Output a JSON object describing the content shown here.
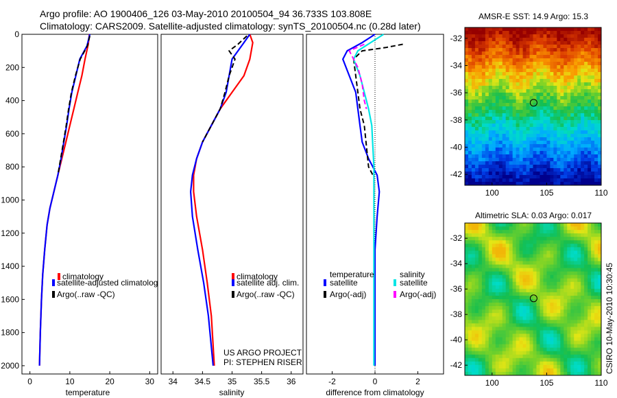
{
  "header": {
    "line1": "Argo profile: AO 1900406_126 03-May-2010 20100504_94 36.733S 103.808E",
    "line2": "Climatology: CARS2009. Satellite-adjusted climatology: synTS_20100504.nc (0.28d later)"
  },
  "colors": {
    "climatology": "#ff0000",
    "satellite": "#0000ff",
    "argo": "#000000",
    "satellite_salinity": "#00e5e5",
    "argo_salinity": "#ff00ff"
  },
  "chart_data": [
    {
      "id": "temperature",
      "type": "line",
      "xlabel": "temperature",
      "xlim": [
        -2,
        32
      ],
      "xticks": [
        0,
        10,
        20,
        30
      ],
      "ylim": [
        0,
        2050
      ],
      "yticks": [
        0,
        200,
        400,
        600,
        800,
        1000,
        1200,
        1400,
        1600,
        1800,
        2000
      ],
      "y_reversed": true,
      "legend": {
        "position": "lower-right",
        "entries": [
          "climatology",
          "satellite-adjusted climatolog",
          "Argo(..raw -QC)"
        ]
      },
      "series": [
        {
          "name": "climatology",
          "color_key": "climatology",
          "dash": "solid",
          "x": [
            14.9,
            14.6,
            13.8,
            13.0,
            12.0,
            11.0,
            10.0,
            9.0,
            8.0,
            7.0,
            6.0,
            5.0,
            4.3,
            3.7,
            3.2,
            2.9,
            2.6,
            2.5,
            2.4
          ],
          "y": [
            0,
            60,
            150,
            250,
            350,
            450,
            550,
            650,
            750,
            850,
            950,
            1050,
            1150,
            1300,
            1450,
            1600,
            1800,
            1900,
            2000
          ]
        },
        {
          "name": "satellite-adjusted climatolog",
          "color_key": "satellite",
          "dash": "solid",
          "x": [
            15.0,
            14.3,
            12.5,
            11.5,
            10.5,
            9.8,
            9.2,
            8.5,
            7.8,
            7.0,
            6.0,
            5.0,
            4.3,
            3.7,
            3.2,
            2.9,
            2.6,
            2.5,
            2.4
          ],
          "y": [
            0,
            70,
            150,
            250,
            350,
            450,
            550,
            650,
            750,
            850,
            950,
            1050,
            1150,
            1300,
            1450,
            1600,
            1800,
            1900,
            2000
          ]
        },
        {
          "name": "Argo(..raw -QC)",
          "color_key": "argo",
          "dash": "dashed",
          "x": [
            15.0,
            14.4,
            12.6,
            11.4,
            10.4,
            9.7,
            9.1,
            8.4,
            7.7,
            7.0
          ],
          "y": [
            10,
            70,
            150,
            250,
            350,
            450,
            550,
            650,
            750,
            850
          ]
        }
      ]
    },
    {
      "id": "salinity",
      "type": "line",
      "xlabel": "salinity",
      "xlim": [
        33.8,
        36.2
      ],
      "xticks": [
        34,
        34.5,
        35,
        35.5,
        36
      ],
      "ylim": [
        0,
        2050
      ],
      "y_reversed": true,
      "legend": {
        "position": "lower-right",
        "entries": [
          "climatology",
          "satellite adj. clim.",
          "Argo(..raw -QC)"
        ]
      },
      "annotation": [
        "US ARGO PROJECT",
        "PI: STEPHEN RISER"
      ],
      "series": [
        {
          "name": "climatology",
          "color_key": "climatology",
          "dash": "solid",
          "x": [
            35.3,
            35.35,
            35.3,
            35.2,
            35.0,
            34.8,
            34.65,
            34.5,
            34.4,
            34.35,
            34.35,
            34.4,
            34.5,
            34.58,
            34.65,
            34.7
          ],
          "y": [
            0,
            50,
            150,
            250,
            350,
            450,
            550,
            650,
            750,
            850,
            950,
            1100,
            1300,
            1500,
            1700,
            2000
          ]
        },
        {
          "name": "satellite adj. clim.",
          "color_key": "satellite",
          "dash": "solid",
          "x": [
            35.3,
            35.2,
            35.0,
            34.95,
            34.9,
            34.8,
            34.65,
            34.5,
            34.4,
            34.33,
            34.3,
            34.33,
            34.42,
            34.52,
            34.6,
            34.68
          ],
          "y": [
            0,
            50,
            150,
            250,
            350,
            450,
            550,
            650,
            750,
            850,
            950,
            1100,
            1300,
            1500,
            1700,
            2000
          ]
        },
        {
          "name": "Argo(..raw -QC)",
          "color_key": "argo",
          "dash": "dashed",
          "x": [
            35.25,
            35.1,
            34.95,
            35.05,
            34.95,
            34.88,
            34.8,
            34.65,
            34.5
          ],
          "y": [
            10,
            60,
            100,
            150,
            250,
            350,
            450,
            550,
            650
          ]
        }
      ]
    },
    {
      "id": "difference",
      "type": "line",
      "xlabel": "difference from climatology",
      "xlim": [
        -3.2,
        3.2
      ],
      "xticks": [
        -2,
        0,
        2
      ],
      "ylim": [
        0,
        2050
      ],
      "y_reversed": true,
      "legend": {
        "position": "lower-center",
        "columns": [
          {
            "header": "temperature",
            "entries": [
              "satellite",
              "Argo(-adj)"
            ]
          },
          {
            "header": "salinity",
            "entries": [
              "satellite",
              "Argo(-adj)"
            ]
          }
        ]
      },
      "series": [
        {
          "name": "temperature satellite",
          "color_key": "satellite",
          "dash": "solid",
          "x": [
            0,
            -0.6,
            -1.3,
            -1.5,
            -1.2,
            -0.9,
            -0.8,
            -0.7,
            -0.6,
            -0.3,
            0.1,
            0.2,
            0.1,
            0.0,
            0.0,
            0.0
          ],
          "y": [
            0,
            50,
            100,
            150,
            250,
            350,
            450,
            550,
            650,
            750,
            850,
            950,
            1100,
            1300,
            1600,
            2000
          ]
        },
        {
          "name": "temperature Argo(-adj)",
          "color_key": "argo",
          "dash": "dashed",
          "x": [
            1.3,
            0.5,
            -0.6,
            -1.0,
            -0.9,
            -0.8,
            -0.7,
            -0.5,
            -0.3,
            -0.1
          ],
          "y": [
            60,
            80,
            100,
            150,
            250,
            350,
            450,
            550,
            800,
            850
          ]
        },
        {
          "name": "salinity satellite",
          "color_key": "satellite_salinity",
          "dash": "solid",
          "x": [
            0.4,
            -0.8,
            -1.0,
            -0.7,
            -0.5,
            -0.3,
            -0.15,
            -0.05,
            -0.05,
            -0.05,
            -0.05
          ],
          "y": [
            0,
            100,
            150,
            250,
            350,
            450,
            550,
            800,
            1000,
            1500,
            2000
          ]
        },
        {
          "name": "salinity Argo(-adj)",
          "color_key": "argo_salinity",
          "dash": "dashed",
          "x": [
            -0.5,
            -1.2,
            -1.0,
            -0.8,
            -0.6,
            -0.5,
            -0.4
          ],
          "y": [
            60,
            100,
            150,
            200,
            300,
            400,
            450
          ]
        }
      ]
    },
    {
      "id": "sst_map",
      "type": "heatmap",
      "title": "AMSR-E SST: 14.9 Argo: 15.3",
      "xlim": [
        97.5,
        110
      ],
      "xticks": [
        100,
        105,
        110
      ],
      "ylim": [
        -42.8,
        -31.2
      ],
      "yticks": [
        -32,
        -34,
        -36,
        -38,
        -40,
        -42
      ],
      "marker": {
        "lon": 103.808,
        "lat": -36.733
      }
    },
    {
      "id": "sla_map",
      "type": "heatmap",
      "title": "Altimetric SLA: 0.03 Argo: 0.017",
      "xlim": [
        97.5,
        110
      ],
      "xticks": [
        100,
        105,
        110
      ],
      "ylim": [
        -42.8,
        -30.8
      ],
      "yticks": [
        -32,
        -34,
        -36,
        -38,
        -40,
        -42
      ],
      "marker": {
        "lon": 103.808,
        "lat": -36.733
      }
    }
  ],
  "footer": {
    "credit": "CSIRO 10-May-2010 10:30:45"
  }
}
